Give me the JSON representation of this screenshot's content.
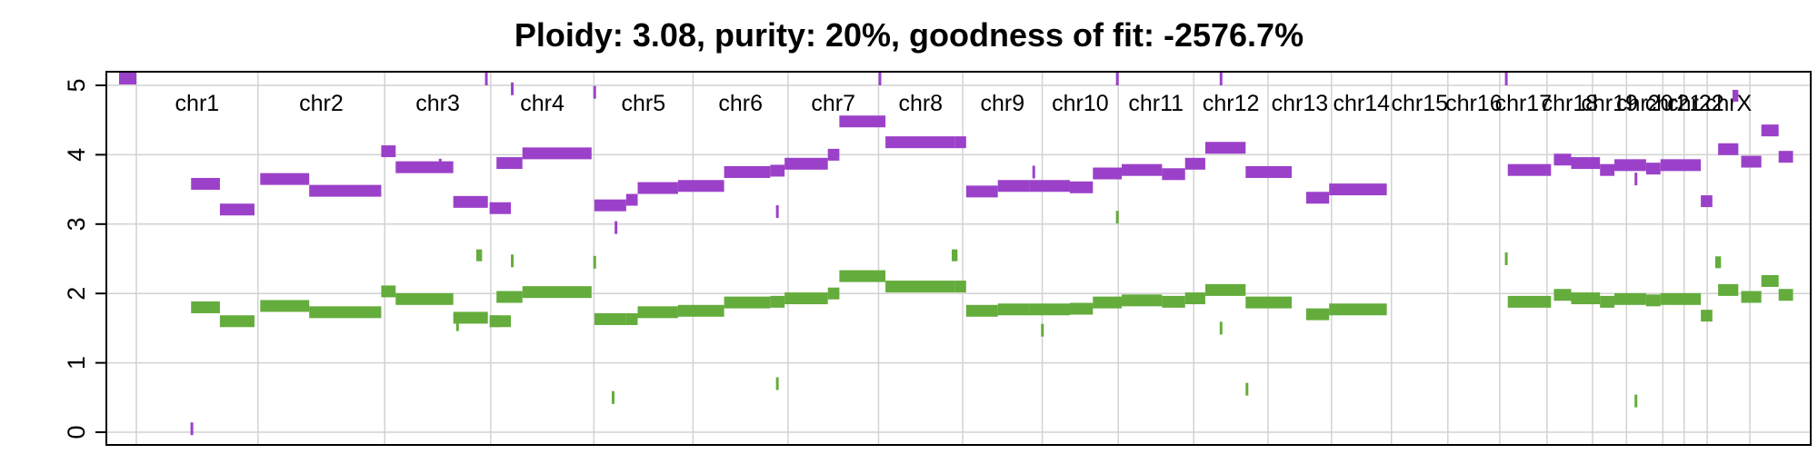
{
  "chart_data": {
    "type": "scatter",
    "title": "Ploidy: 3.08, purity: 20%, goodness of fit: -2576.7%",
    "xlabel": "",
    "ylabel": "",
    "ylim": [
      0,
      5
    ],
    "xlim": [
      0,
      300
    ],
    "y_ticks": [
      "0",
      "1",
      "2",
      "3",
      "4",
      "5"
    ],
    "grid": true,
    "colors": {
      "major_cn": "#9b41c9",
      "minor_cn": "#64ac3c",
      "grid": "#d2d2d2",
      "frame": "#000000"
    },
    "chromosomes": [
      {
        "name": "chr1",
        "start": 0,
        "end": 21.1
      },
      {
        "name": "chr2",
        "start": 21.1,
        "end": 43.1
      },
      {
        "name": "chr3",
        "start": 43.1,
        "end": 61.5
      },
      {
        "name": "chr4",
        "start": 61.5,
        "end": 79.4
      },
      {
        "name": "chr5",
        "start": 79.4,
        "end": 96.6
      },
      {
        "name": "chr6",
        "start": 96.6,
        "end": 113.1
      },
      {
        "name": "chr7",
        "start": 113.1,
        "end": 128.8
      },
      {
        "name": "chr8",
        "start": 128.8,
        "end": 143.4
      },
      {
        "name": "chr9",
        "start": 143.4,
        "end": 157.2
      },
      {
        "name": "chr10",
        "start": 157.2,
        "end": 170.4
      },
      {
        "name": "chr11",
        "start": 170.4,
        "end": 183.5
      },
      {
        "name": "chr12",
        "start": 183.5,
        "end": 196.4
      },
      {
        "name": "chr13",
        "start": 196.4,
        "end": 207.4
      },
      {
        "name": "chr14",
        "start": 207.4,
        "end": 217.8
      },
      {
        "name": "chr15",
        "start": 217.8,
        "end": 227.6
      },
      {
        "name": "chr16",
        "start": 227.6,
        "end": 236.6
      },
      {
        "name": "chr17",
        "start": 236.6,
        "end": 244.8
      },
      {
        "name": "chr18",
        "start": 244.8,
        "end": 252.7
      },
      {
        "name": "chr19",
        "start": 252.7,
        "end": 258.6
      },
      {
        "name": "chr20",
        "start": 258.6,
        "end": 264.9
      },
      {
        "name": "chr21",
        "start": 264.9,
        "end": 268.6
      },
      {
        "name": "chr22",
        "start": 268.6,
        "end": 272.6
      },
      {
        "name": "chrX",
        "start": 272.6,
        "end": 280
      }
    ],
    "series": [
      {
        "name": "major",
        "color": "#9b41c9",
        "segments": [
          [
            -3,
            0,
            5.15
          ],
          [
            9.5,
            14.5,
            3.58
          ],
          [
            14.5,
            20.5,
            3.21
          ],
          [
            9.4,
            9.5,
            0.05
          ],
          [
            21.5,
            30,
            3.65
          ],
          [
            30,
            42.5,
            3.48
          ],
          [
            42.5,
            45,
            4.05
          ],
          [
            45,
            55,
            3.82
          ],
          [
            55,
            61,
            3.32
          ],
          [
            52.5,
            52.6,
            3.85
          ],
          [
            61.3,
            65,
            3.23
          ],
          [
            60.5,
            60.7,
            5.1
          ],
          [
            62.5,
            67,
            3.88
          ],
          [
            67,
            79,
            4.02
          ],
          [
            65,
            65.2,
            4.95
          ],
          [
            79.3,
            79.6,
            4.9
          ],
          [
            79.5,
            85,
            3.27
          ],
          [
            83,
            83.2,
            2.95
          ],
          [
            85,
            87,
            3.35
          ],
          [
            87,
            94,
            3.52
          ],
          [
            94,
            102,
            3.55
          ],
          [
            102,
            110,
            3.75
          ],
          [
            110,
            112.5,
            3.77
          ],
          [
            112.5,
            120,
            3.87
          ],
          [
            120,
            122,
            4.0
          ],
          [
            111,
            111.2,
            3.18
          ],
          [
            122,
            130,
            4.48
          ],
          [
            130,
            142,
            4.18
          ],
          [
            128.8,
            129,
            5.15
          ],
          [
            142,
            144,
            4.18
          ],
          [
            144,
            149.5,
            3.47
          ],
          [
            149.5,
            155,
            3.55
          ],
          [
            155,
            162,
            3.55
          ],
          [
            162,
            166,
            3.53
          ],
          [
            155.5,
            155.6,
            3.75
          ],
          [
            166,
            171,
            3.73
          ],
          [
            171,
            178,
            3.78
          ],
          [
            170,
            170.1,
            5.1
          ],
          [
            178,
            182,
            3.72
          ],
          [
            182,
            185.5,
            3.87
          ],
          [
            185.5,
            192.5,
            4.1
          ],
          [
            188,
            188.1,
            5.1
          ],
          [
            192.5,
            200.5,
            3.75
          ],
          [
            203,
            207,
            3.38
          ],
          [
            207,
            217,
            3.5
          ],
          [
            237.5,
            237.7,
            5.1
          ],
          [
            238,
            245.5,
            3.78
          ],
          [
            246,
            249,
            3.93
          ],
          [
            249,
            254,
            3.88
          ],
          [
            254,
            256.5,
            3.78
          ],
          [
            256.5,
            262,
            3.85
          ],
          [
            260,
            260.1,
            3.65
          ],
          [
            262,
            264.5,
            3.8
          ],
          [
            264.5,
            271.5,
            3.85
          ],
          [
            271.5,
            273.5,
            3.33
          ],
          [
            274.5,
            278,
            4.08
          ],
          [
            277,
            278,
            4.85
          ],
          [
            278.5,
            282,
            3.9
          ],
          [
            282,
            285,
            4.35
          ],
          [
            285,
            287.5,
            3.97
          ]
        ]
      },
      {
        "name": "minor",
        "color": "#64ac3c",
        "segments": [
          [
            9.5,
            14.5,
            1.8
          ],
          [
            14.5,
            20.5,
            1.6
          ],
          [
            21.5,
            30,
            1.82
          ],
          [
            30,
            42.5,
            1.73
          ],
          [
            42.5,
            45,
            2.03
          ],
          [
            45,
            55,
            1.92
          ],
          [
            55,
            61,
            1.65
          ],
          [
            61.3,
            65,
            1.6
          ],
          [
            55.5,
            55.6,
            1.55
          ],
          [
            59,
            60,
            2.55
          ],
          [
            61.5,
            63,
            1.6
          ],
          [
            62.5,
            67,
            1.95
          ],
          [
            67,
            79,
            2.02
          ],
          [
            65,
            65.2,
            2.47
          ],
          [
            79.3,
            79.6,
            2.45
          ],
          [
            79.5,
            85,
            1.63
          ],
          [
            82.5,
            82.7,
            0.5
          ],
          [
            85,
            87,
            1.63
          ],
          [
            87,
            94,
            1.73
          ],
          [
            94,
            102,
            1.75
          ],
          [
            102,
            110,
            1.87
          ],
          [
            110,
            112.5,
            1.88
          ],
          [
            112.5,
            120,
            1.93
          ],
          [
            120,
            122,
            2.0
          ],
          [
            111,
            111.2,
            0.7
          ],
          [
            122,
            130,
            2.25
          ],
          [
            130,
            142,
            2.1
          ],
          [
            142,
            144,
            2.1
          ],
          [
            141.5,
            142.5,
            2.55
          ],
          [
            144,
            149.5,
            1.75
          ],
          [
            149.5,
            155,
            1.77
          ],
          [
            155,
            162,
            1.77
          ],
          [
            162,
            166,
            1.78
          ],
          [
            157,
            157.1,
            1.47
          ],
          [
            166,
            171,
            1.87
          ],
          [
            171,
            178,
            1.9
          ],
          [
            170,
            170.1,
            3.1
          ],
          [
            178,
            182,
            1.88
          ],
          [
            182,
            185.5,
            1.93
          ],
          [
            185.5,
            192.5,
            2.05
          ],
          [
            188,
            188.1,
            1.5
          ],
          [
            192.5,
            200.5,
            1.87
          ],
          [
            192.5,
            192.7,
            0.62
          ],
          [
            203,
            207,
            1.7
          ],
          [
            207,
            217,
            1.77
          ],
          [
            237.5,
            237.7,
            2.5
          ],
          [
            238,
            245.5,
            1.88
          ],
          [
            246,
            249,
            1.98
          ],
          [
            249,
            254,
            1.93
          ],
          [
            254,
            256.5,
            1.88
          ],
          [
            256.5,
            262,
            1.92
          ],
          [
            260,
            260.1,
            0.45
          ],
          [
            262,
            264.5,
            1.9
          ],
          [
            264.5,
            271.5,
            1.92
          ],
          [
            271.5,
            273.5,
            1.68
          ],
          [
            274,
            275,
            2.45
          ],
          [
            274.5,
            278,
            2.05
          ],
          [
            278.5,
            282,
            1.95
          ],
          [
            282,
            285,
            2.18
          ],
          [
            285,
            287.5,
            1.98
          ]
        ]
      }
    ]
  }
}
